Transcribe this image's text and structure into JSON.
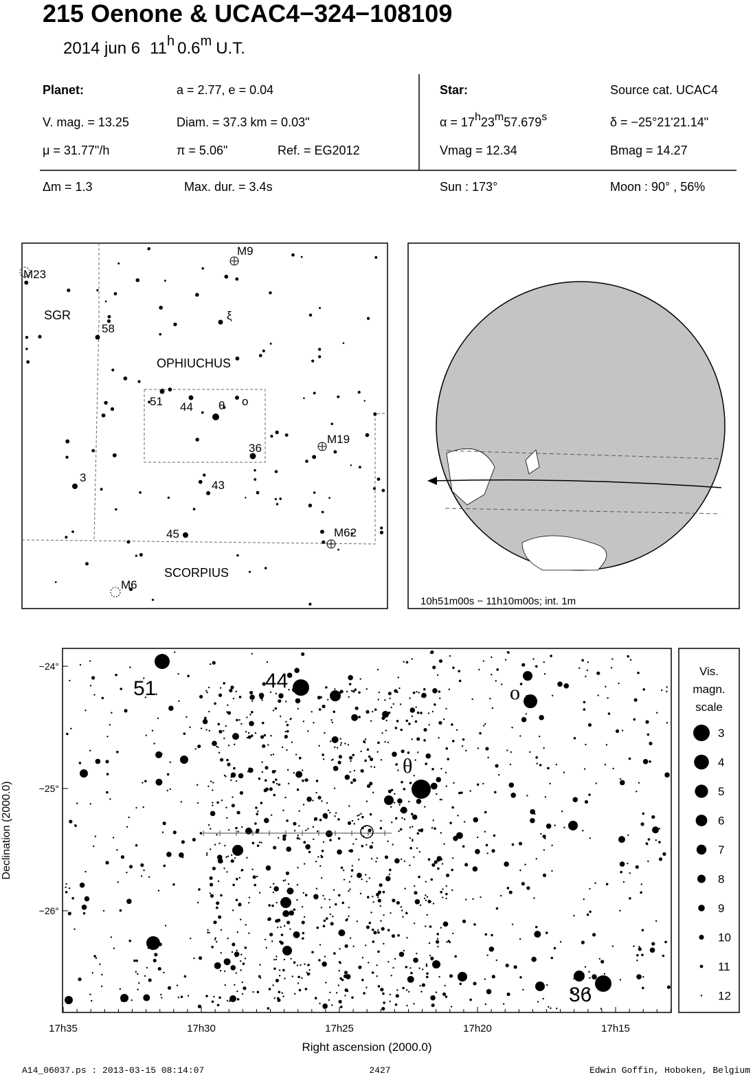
{
  "header": {
    "title": "215 Oenone  &  UCAC4−324−108109",
    "date": "2014 jun  6",
    "hour": "11",
    "hour_unit": "h",
    "minute": "0.6",
    "minute_unit": "m",
    "timescale": "U.T."
  },
  "info": {
    "planet_label": "Planet:",
    "orbit": "a = 2.77, e = 0.04",
    "star_label": "Star:",
    "source": "Source cat.  UCAC4",
    "vmag_planet": "V. mag. = 13.25",
    "diameter": "Diam. = 37.3 km = 0.03\"",
    "ra": {
      "prefix": "α = 17",
      "h": "h",
      "min": "23",
      "m": "m",
      "sec": "57.679",
      "s": "s"
    },
    "dec": "δ = −25°21'21.14\"",
    "motion": "μ =  31.77\"/h",
    "parallax": "π =  5.06\"",
    "reference": "Ref. = EG2012",
    "vmag_star": "Vmag = 12.34",
    "bmag_star": "Bmag = 14.27",
    "delta_mag": "Δm = 1.3",
    "max_duration": "Max. dur. = 3.4s",
    "sun": "Sun : 173°",
    "moon": "Moon :  90° , 56%"
  },
  "finder": {
    "labels": [
      "M9",
      "M23",
      "SGR",
      "58",
      "ξ",
      "OPHIUCHUS",
      "51",
      "44",
      "θ",
      "ο",
      "36",
      "M19",
      "3",
      "43",
      "45",
      "M62",
      "SCORPIUS",
      "M6"
    ]
  },
  "globe": {
    "caption": "10h51m00s − 11h10m00s; int.  1m"
  },
  "detail": {
    "star_labels": [
      "51",
      "44",
      "ο",
      "θ",
      "36"
    ],
    "yticks": [
      "−24°",
      "−25°",
      "−26°"
    ],
    "xticks": [
      "17h35",
      "17h30",
      "17h25",
      "17h20",
      "17h15"
    ],
    "ylabel": "Declination (2000.0)",
    "xlabel": "Right ascension (2000.0)",
    "legend": {
      "title": [
        "Vis.",
        "magn.",
        "scale"
      ],
      "mags": [
        3,
        4,
        5,
        6,
        7,
        8,
        9,
        10,
        11,
        12
      ]
    }
  },
  "footer": {
    "file": "A14_06037.ps : 2013-03-15 08:14:07",
    "number": "2427",
    "author": "Edwin Goffin, Hoboken, Belgium"
  }
}
